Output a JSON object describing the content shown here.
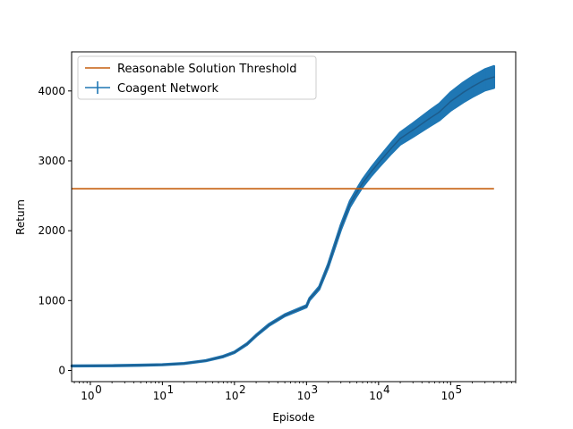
{
  "chart_data": {
    "type": "line",
    "xlabel": "Episode",
    "ylabel": "Return",
    "xscale": "log",
    "xlim": [
      0.55,
      800000
    ],
    "ylim": [
      -160,
      4560
    ],
    "x_ticks": [
      {
        "value": 1,
        "base": "10",
        "exp": "0"
      },
      {
        "value": 10,
        "base": "10",
        "exp": "1"
      },
      {
        "value": 100,
        "base": "10",
        "exp": "2"
      },
      {
        "value": 1000,
        "base": "10",
        "exp": "3"
      },
      {
        "value": 10000,
        "base": "10",
        "exp": "4"
      },
      {
        "value": 100000,
        "base": "10",
        "exp": "5"
      }
    ],
    "y_ticks": [
      {
        "value": 0,
        "label": "0"
      },
      {
        "value": 1000,
        "label": "1000"
      },
      {
        "value": 2000,
        "label": "2000"
      },
      {
        "value": 3000,
        "label": "3000"
      },
      {
        "value": 4000,
        "label": "4000"
      }
    ],
    "legend": {
      "placement": "upper-left",
      "entries": [
        {
          "name": "Reasonable Solution Threshold",
          "color": "#c65f0f"
        },
        {
          "name": "Coagent Network",
          "color": "#1f77b4"
        }
      ]
    },
    "threshold": {
      "name": "Reasonable Solution Threshold",
      "y": 2600,
      "x_range": [
        0.55,
        400000
      ],
      "color": "#c65f0f"
    },
    "series": [
      {
        "name": "Coagent Network",
        "color": "#1f77b4",
        "line_color": "#1d5c8c",
        "points": [
          {
            "x": 0.55,
            "y": 65,
            "err": 6
          },
          {
            "x": 2,
            "y": 68,
            "err": 6
          },
          {
            "x": 5,
            "y": 75,
            "err": 6
          },
          {
            "x": 10,
            "y": 82,
            "err": 6
          },
          {
            "x": 20,
            "y": 100,
            "err": 6
          },
          {
            "x": 40,
            "y": 140,
            "err": 6
          },
          {
            "x": 70,
            "y": 200,
            "err": 8
          },
          {
            "x": 100,
            "y": 260,
            "err": 8
          },
          {
            "x": 150,
            "y": 380,
            "err": 10
          },
          {
            "x": 200,
            "y": 500,
            "err": 10
          },
          {
            "x": 300,
            "y": 650,
            "err": 12
          },
          {
            "x": 500,
            "y": 790,
            "err": 12
          },
          {
            "x": 1000,
            "y": 920,
            "err": 14
          },
          {
            "x": 1100,
            "y": 1020,
            "err": 16
          },
          {
            "x": 1500,
            "y": 1180,
            "err": 20
          },
          {
            "x": 2000,
            "y": 1500,
            "err": 26
          },
          {
            "x": 3000,
            "y": 2050,
            "err": 36
          },
          {
            "x": 4000,
            "y": 2380,
            "err": 42
          },
          {
            "x": 5000,
            "y": 2550,
            "err": 48
          },
          {
            "x": 6000,
            "y": 2680,
            "err": 52
          },
          {
            "x": 8000,
            "y": 2850,
            "err": 60
          },
          {
            "x": 10000,
            "y": 2970,
            "err": 66
          },
          {
            "x": 15000,
            "y": 3180,
            "err": 76
          },
          {
            "x": 20000,
            "y": 3320,
            "err": 86
          },
          {
            "x": 30000,
            "y": 3440,
            "err": 96
          },
          {
            "x": 50000,
            "y": 3600,
            "err": 110
          },
          {
            "x": 70000,
            "y": 3700,
            "err": 118
          },
          {
            "x": 100000,
            "y": 3850,
            "err": 130
          },
          {
            "x": 150000,
            "y": 3980,
            "err": 140
          },
          {
            "x": 200000,
            "y": 4060,
            "err": 145
          },
          {
            "x": 300000,
            "y": 4160,
            "err": 150
          },
          {
            "x": 400000,
            "y": 4200,
            "err": 155
          }
        ]
      }
    ]
  }
}
